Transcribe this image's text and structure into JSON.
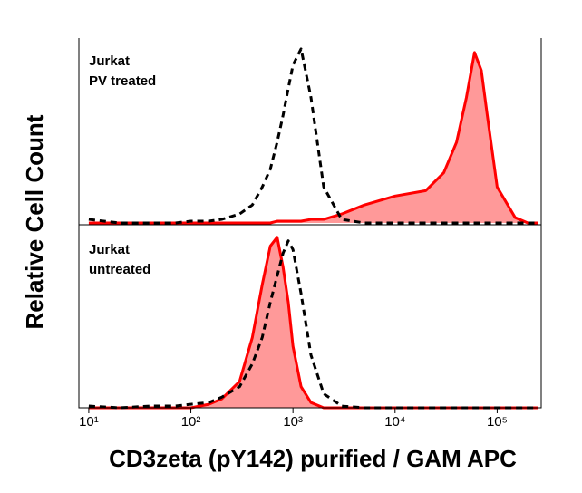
{
  "chart_data": [
    {
      "type": "area",
      "annotation": [
        "Jurkat",
        "PV treated"
      ],
      "ylabel": "Relative Cell Count",
      "xscale": "log",
      "xlim": [
        8,
        270000
      ],
      "ylim": [
        0,
        100
      ],
      "x": [
        10,
        20,
        40,
        70,
        100,
        150,
        200,
        300,
        400,
        500,
        600,
        700,
        800,
        900,
        1000,
        1200,
        1500,
        2000,
        3000,
        5000,
        10000,
        20000,
        30000,
        40000,
        50000,
        60000,
        70000,
        80000,
        100000,
        150000,
        200000,
        250000
      ],
      "series": [
        {
          "color": "#000000",
          "style": "dashed",
          "values": [
            2,
            0,
            0,
            0,
            1,
            1,
            2,
            5,
            10,
            20,
            30,
            45,
            60,
            75,
            88,
            97,
            70,
            20,
            2,
            0,
            0,
            0,
            0,
            0,
            0,
            0,
            0,
            0,
            0,
            0,
            0,
            0
          ]
        },
        {
          "color": "#ff0000",
          "fill": "#ff9999",
          "values": [
            0,
            0,
            0,
            0,
            0,
            0,
            0,
            0,
            0,
            0,
            0,
            1,
            1,
            1,
            1,
            1,
            2,
            2,
            5,
            10,
            15,
            18,
            28,
            45,
            70,
            95,
            85,
            60,
            20,
            3,
            0,
            0
          ]
        }
      ]
    },
    {
      "type": "area",
      "annotation": [
        "Jurkat",
        "untreated"
      ],
      "xlabel": "CD3zeta (pY142) purified / GAM APC",
      "xscale": "log",
      "xlim": [
        8,
        270000
      ],
      "ylim": [
        0,
        100
      ],
      "xticks": [
        {
          "value": 10,
          "label": "10¹"
        },
        {
          "value": 100,
          "label": "10²"
        },
        {
          "value": 1000,
          "label": "10³"
        },
        {
          "value": 10000,
          "label": "10⁴"
        },
        {
          "value": 100000,
          "label": "10⁵"
        }
      ],
      "x": [
        10,
        20,
        40,
        70,
        100,
        150,
        200,
        300,
        400,
        500,
        600,
        700,
        800,
        900,
        1000,
        1200,
        1500,
        2000,
        3000,
        5000,
        10000,
        20000,
        30000,
        40000,
        50000,
        60000,
        70000,
        80000,
        100000,
        150000,
        200000,
        250000
      ],
      "series": [
        {
          "color": "#000000",
          "style": "dashed",
          "values": [
            1,
            0,
            1,
            1,
            2,
            3,
            6,
            12,
            25,
            40,
            60,
            75,
            88,
            95,
            90,
            65,
            30,
            8,
            1,
            0,
            0,
            0,
            0,
            0,
            0,
            0,
            0,
            0,
            0,
            0,
            0,
            0
          ]
        },
        {
          "color": "#ff0000",
          "fill": "#ff9999",
          "values": [
            0,
            0,
            0,
            0,
            0,
            2,
            5,
            15,
            40,
            70,
            92,
            97,
            80,
            60,
            35,
            12,
            3,
            0,
            0,
            0,
            0,
            0,
            0,
            0,
            0,
            0,
            0,
            0,
            0,
            0,
            0,
            0
          ]
        }
      ]
    }
  ]
}
